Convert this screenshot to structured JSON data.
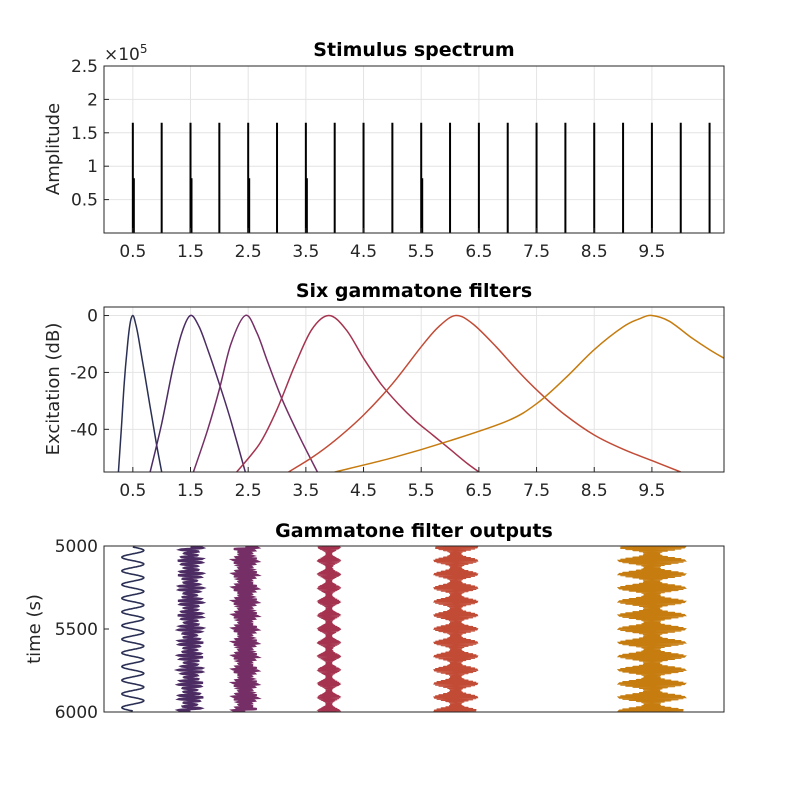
{
  "colors": {
    "stem": "#000000",
    "f1": "#2a2f54",
    "f2": "#4c2c63",
    "f3": "#752e66",
    "f4": "#a5334f",
    "f5": "#c24b36",
    "f6": "#c67c0f"
  },
  "chart_data": [
    {
      "type": "bar",
      "title": "Stimulus spectrum",
      "ylabel": "Amplitude",
      "y_multiplier": "×10",
      "y_multiplier_exponent": "5",
      "xlim": [
        0,
        10.75
      ],
      "ylim": [
        0,
        250000
      ],
      "xticks": [
        0.5,
        1.5,
        2.5,
        3.5,
        4.5,
        5.5,
        6.5,
        7.5,
        8.5,
        9.5
      ],
      "xtick_labels": [
        "0.5",
        "1.5",
        "2.5",
        "3.5",
        "4.5",
        "5.5",
        "6.5",
        "7.5",
        "8.5",
        "9.5"
      ],
      "yticks": [
        50000,
        100000,
        150000,
        200000,
        250000
      ],
      "ytick_labels": [
        "0.5",
        "1",
        "1.5",
        "2",
        "2.5"
      ],
      "grid": true,
      "stems": [
        {
          "x": 0.5,
          "y": 165000
        },
        {
          "x": 0.5,
          "y": 82000
        },
        {
          "x": 1.0,
          "y": 165000
        },
        {
          "x": 1.5,
          "y": 165000
        },
        {
          "x": 1.5,
          "y": 82000
        },
        {
          "x": 2.0,
          "y": 165000
        },
        {
          "x": 2.5,
          "y": 165000
        },
        {
          "x": 2.5,
          "y": 82000
        },
        {
          "x": 3.0,
          "y": 165000
        },
        {
          "x": 3.5,
          "y": 165000
        },
        {
          "x": 3.5,
          "y": 82000
        },
        {
          "x": 4.0,
          "y": 165000
        },
        {
          "x": 4.5,
          "y": 165000
        },
        {
          "x": 5.0,
          "y": 165000
        },
        {
          "x": 5.5,
          "y": 165000
        },
        {
          "x": 5.5,
          "y": 82000
        },
        {
          "x": 6.0,
          "y": 165000
        },
        {
          "x": 6.5,
          "y": 165000
        },
        {
          "x": 7.0,
          "y": 165000
        },
        {
          "x": 7.5,
          "y": 165000
        },
        {
          "x": 8.0,
          "y": 165000
        },
        {
          "x": 8.5,
          "y": 165000
        },
        {
          "x": 9.0,
          "y": 165000
        },
        {
          "x": 9.5,
          "y": 165000
        },
        {
          "x": 10.0,
          "y": 165000
        },
        {
          "x": 10.5,
          "y": 165000
        }
      ]
    },
    {
      "type": "line",
      "title": "Six gammatone filters",
      "ylabel": "Excitation (dB)",
      "xlim": [
        0,
        10.75
      ],
      "ylim": [
        -55,
        3
      ],
      "xticks": [
        0.5,
        1.5,
        2.5,
        3.5,
        4.5,
        5.5,
        6.5,
        7.5,
        8.5,
        9.5
      ],
      "xtick_labels": [
        "0.5",
        "1.5",
        "2.5",
        "3.5",
        "4.5",
        "5.5",
        "6.5",
        "7.5",
        "8.5",
        "9.5"
      ],
      "yticks": [
        -40,
        -20,
        0
      ],
      "ytick_labels": [
        "-40",
        "-20",
        "0"
      ],
      "grid": true,
      "series": [
        {
          "color_key": "f1",
          "center": 0.5,
          "x": [
            0.25,
            0.3,
            0.35,
            0.4,
            0.45,
            0.5,
            0.55,
            0.6,
            0.7,
            0.8,
            0.9,
            1.0
          ],
          "y": [
            -55,
            -40,
            -24,
            -12,
            -3,
            0,
            -3,
            -8,
            -20,
            -32,
            -44,
            -55
          ]
        },
        {
          "color_key": "f2",
          "center": 1.5,
          "x": [
            0.8,
            1.0,
            1.2,
            1.35,
            1.5,
            1.65,
            1.8,
            2.0,
            2.2,
            2.45
          ],
          "y": [
            -55,
            -38,
            -18,
            -6,
            0,
            -4,
            -12,
            -24,
            -37,
            -55
          ]
        },
        {
          "color_key": "f3",
          "center": 2.45,
          "x": [
            1.55,
            1.8,
            2.0,
            2.2,
            2.45,
            2.65,
            2.85,
            3.1,
            3.4,
            3.7
          ],
          "y": [
            -55,
            -40,
            -26,
            -10,
            0,
            -6,
            -17,
            -30,
            -43,
            -55
          ]
        },
        {
          "color_key": "f4",
          "center": 3.9,
          "x": [
            2.3,
            2.7,
            3.0,
            3.3,
            3.6,
            3.9,
            4.2,
            4.5,
            4.8,
            5.1,
            5.4,
            5.7,
            6.0,
            6.3,
            6.5
          ],
          "y": [
            -55,
            -45,
            -33,
            -18,
            -5,
            0,
            -5,
            -15,
            -24,
            -31,
            -37,
            -42,
            -47,
            -52,
            -55
          ]
        },
        {
          "color_key": "f5",
          "center": 6.1,
          "x": [
            3.2,
            3.6,
            4.0,
            4.5,
            5.0,
            5.5,
            5.8,
            6.1,
            6.4,
            6.8,
            7.2,
            7.6,
            8.0,
            8.5,
            9.0,
            9.5,
            10.0
          ],
          "y": [
            -55,
            -50,
            -44,
            -35,
            -24,
            -11,
            -4,
            0,
            -3,
            -11,
            -20,
            -28,
            -35,
            -42,
            -47,
            -51,
            -55
          ]
        },
        {
          "color_key": "f6",
          "center": 9.5,
          "x": [
            4.0,
            5.0,
            6.0,
            7.0,
            7.5,
            8.0,
            8.5,
            9.0,
            9.3,
            9.5,
            9.8,
            10.2,
            10.5,
            10.75
          ],
          "y": [
            -55,
            -50,
            -44,
            -37,
            -31,
            -22,
            -12,
            -4,
            -1,
            0,
            -2,
            -8,
            -12,
            -15
          ]
        }
      ]
    },
    {
      "type": "area",
      "title": "Gammatone filter outputs",
      "ylabel": "time (s)",
      "xlim": [
        0,
        10.75
      ],
      "ylim": [
        5000,
        6000
      ],
      "y_reversed": true,
      "yticks": [
        5000,
        5500,
        6000
      ],
      "ytick_labels": [
        "5000",
        "5500",
        "6000"
      ],
      "grid": false,
      "traces": [
        {
          "color_key": "f1",
          "center": 0.5,
          "halfwidth": 0.2,
          "cycles": 12,
          "style": "sine"
        },
        {
          "color_key": "f2",
          "center": 1.5,
          "halfwidth": 0.22,
          "cycles": 45,
          "style": "dense"
        },
        {
          "color_key": "f3",
          "center": 2.45,
          "halfwidth": 0.22,
          "cycles": 60,
          "style": "dense"
        },
        {
          "color_key": "f4",
          "center": 3.9,
          "halfwidth": 0.2,
          "cycles": 12,
          "style": "beat"
        },
        {
          "color_key": "f5",
          "center": 6.1,
          "halfwidth": 0.42,
          "cycles": 12,
          "style": "beat"
        },
        {
          "color_key": "f6",
          "center": 9.5,
          "halfwidth": 0.65,
          "cycles": 12,
          "style": "beat"
        }
      ]
    }
  ]
}
